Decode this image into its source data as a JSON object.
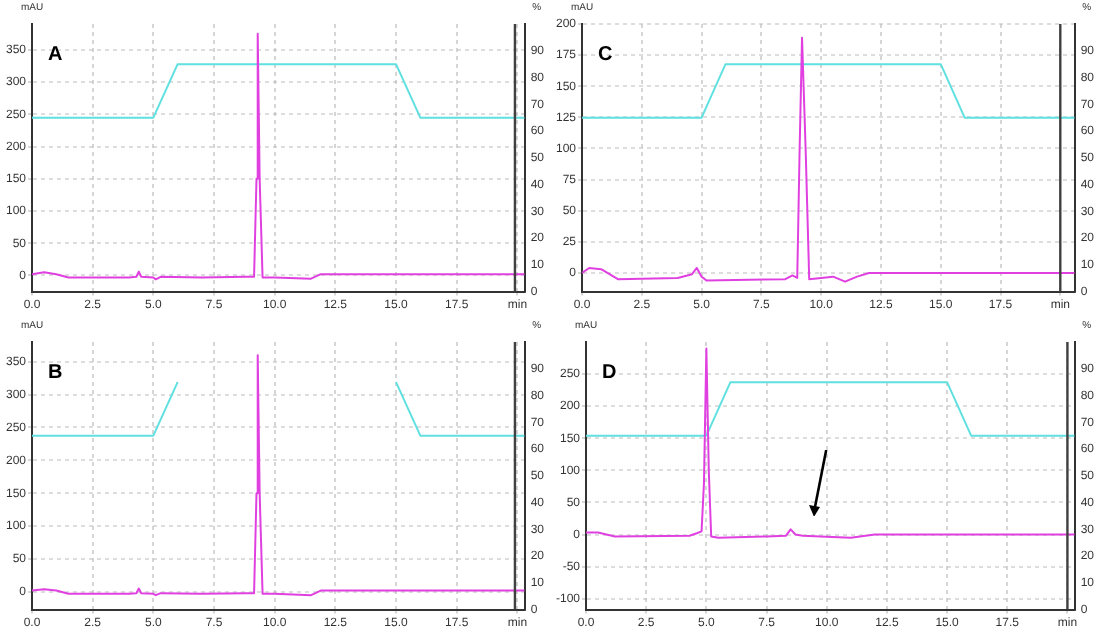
{
  "chart_data": [
    {
      "type": "line",
      "title": "A",
      "ylabel": "mAU",
      "y2label": "%",
      "grid": true,
      "marker": "none",
      "xlim": [
        0,
        20.3
      ],
      "xticks": [
        {
          "value": 0,
          "label": "0.0"
        },
        {
          "value": 2.5,
          "label": "2.5"
        },
        {
          "value": 5,
          "label": "5.0"
        },
        {
          "value": 7.5,
          "label": "7.5"
        },
        {
          "value": 10,
          "label": "10.0"
        },
        {
          "value": 12.5,
          "label": "12.5"
        },
        {
          "value": 15,
          "label": "15.0"
        },
        {
          "value": 17.5,
          "label": "17.5"
        },
        {
          "value": 20,
          "label": "min"
        }
      ],
      "ylim": [
        -25,
        390
      ],
      "yticks": [
        0,
        50,
        100,
        150,
        200,
        250,
        300,
        350
      ],
      "y2lim": [
        0,
        100
      ],
      "y2ticks": [
        0,
        10,
        20,
        30,
        40,
        50,
        60,
        70,
        80,
        90
      ],
      "ref_lines": [
        {
          "axis": "x",
          "value": 19.9,
          "color": "#404040"
        }
      ],
      "series": [
        {
          "color": "#e040e0",
          "x": [
            0,
            0.5,
            1,
            1.5,
            4,
            4.3,
            4.4,
            4.5,
            5,
            5.1,
            5.3,
            7,
            8.8,
            9.15,
            9.25,
            9.3,
            9.38,
            9.5,
            10,
            11.5,
            11.9,
            12.5,
            20.3
          ],
          "values": [
            2,
            5,
            2,
            -3,
            -3,
            -2,
            6,
            -2,
            -3,
            -6,
            -2,
            -3,
            -2,
            -2,
            150,
            375,
            150,
            -3,
            -3,
            -5,
            2,
            2,
            2
          ]
        },
        {
          "color": "#60e0e0",
          "axis": "y2",
          "x": [
            0,
            5,
            6,
            15,
            16,
            20.3
          ],
          "values": [
            65,
            65,
            85,
            85,
            65,
            65
          ]
        }
      ]
    },
    {
      "type": "line",
      "title": "C",
      "ylabel": "mAU",
      "y2label": "%",
      "grid": true,
      "marker": "none",
      "xlim": [
        0,
        20.6
      ],
      "xticks": [
        {
          "value": 0,
          "label": "0.0"
        },
        {
          "value": 2.5,
          "label": "2.5"
        },
        {
          "value": 5,
          "label": "5.0"
        },
        {
          "value": 7.5,
          "label": "7.5"
        },
        {
          "value": 10,
          "label": "10.0"
        },
        {
          "value": 12.5,
          "label": "12.5"
        },
        {
          "value": 15,
          "label": "15.0"
        },
        {
          "value": 17.5,
          "label": "17.5"
        },
        {
          "value": 20,
          "label": "min"
        }
      ],
      "ylim": [
        -15,
        200
      ],
      "yticks": [
        0,
        25,
        50,
        75,
        100,
        125,
        150,
        175,
        200
      ],
      "y2lim": [
        0,
        100
      ],
      "y2ticks": [
        0,
        10,
        20,
        30,
        40,
        50,
        60,
        70,
        80,
        90
      ],
      "ref_lines": [
        {
          "axis": "x",
          "value": 20,
          "color": "#404040"
        }
      ],
      "series": [
        {
          "color": "#e040e0",
          "x": [
            0,
            0.3,
            0.8,
            1.5,
            4,
            4.6,
            4.8,
            5,
            5.2,
            8.5,
            8.8,
            9,
            9.1,
            9.2,
            9.35,
            9.5,
            10.5,
            11,
            11.5,
            12,
            20.6
          ],
          "values": [
            0,
            4,
            3,
            -5,
            -4,
            -1,
            4,
            -3,
            -6,
            -5,
            -2,
            -4,
            100,
            189,
            100,
            -5,
            -3,
            -7,
            -3,
            0,
            0
          ]
        },
        {
          "color": "#60e0e0",
          "axis": "y2",
          "x": [
            0,
            5,
            6,
            15,
            16,
            20.6
          ],
          "values": [
            65,
            65,
            85,
            85,
            65,
            65
          ]
        }
      ]
    },
    {
      "type": "line",
      "title": "B",
      "ylabel": "mAU",
      "y2label": "%",
      "grid": true,
      "marker": "none",
      "xlim": [
        0,
        20.3
      ],
      "xticks": [
        {
          "value": 0,
          "label": "0.0"
        },
        {
          "value": 2.5,
          "label": "2.5"
        },
        {
          "value": 5,
          "label": "5.0"
        },
        {
          "value": 7.5,
          "label": "7.5"
        },
        {
          "value": 10,
          "label": "10.0"
        },
        {
          "value": 12.5,
          "label": "12.5"
        },
        {
          "value": 15,
          "label": "15.0"
        },
        {
          "value": 17.5,
          "label": "17.5"
        },
        {
          "value": 20,
          "label": "min"
        }
      ],
      "ylim": [
        -27,
        380
      ],
      "yticks": [
        0,
        50,
        100,
        150,
        200,
        250,
        300,
        350
      ],
      "y2lim": [
        0,
        100
      ],
      "y2ticks": [
        0,
        10,
        20,
        30,
        40,
        50,
        60,
        70,
        80,
        90
      ],
      "ref_lines": [
        {
          "axis": "x",
          "value": 19.9,
          "color": "#404040"
        }
      ],
      "series": [
        {
          "color": "#e040e0",
          "x": [
            0,
            0.5,
            1,
            1.5,
            4,
            4.3,
            4.4,
            4.5,
            5,
            5.1,
            5.3,
            7,
            8.8,
            9.15,
            9.25,
            9.3,
            9.38,
            9.5,
            10,
            11.5,
            11.9,
            12.5,
            20.3
          ],
          "values": [
            2,
            4,
            2,
            -3,
            -3,
            -2,
            5,
            -2,
            -3,
            -5,
            -2,
            -3,
            -2,
            -2,
            150,
            360,
            150,
            -3,
            -3,
            -5,
            2,
            2,
            2
          ]
        },
        {
          "color": "#60e0e0",
          "axis": "y2",
          "x": [
            0,
            5,
            6,
            10.5,
            15,
            16,
            20.3
          ],
          "values": [
            65,
            65,
            85,
            null,
            85,
            65,
            65
          ]
        }
      ]
    },
    {
      "type": "line",
      "title": "D",
      "ylabel": "mAU",
      "y2label": "%",
      "grid": true,
      "marker": "none",
      "xlim": [
        0,
        20.3
      ],
      "xticks": [
        {
          "value": 0,
          "label": "0.0"
        },
        {
          "value": 2.5,
          "label": "2.5"
        },
        {
          "value": 5,
          "label": "5.0"
        },
        {
          "value": 7.5,
          "label": "7.5"
        },
        {
          "value": 10,
          "label": "10.0"
        },
        {
          "value": 12.5,
          "label": "12.5"
        },
        {
          "value": 15,
          "label": "15.0"
        },
        {
          "value": 17.5,
          "label": "17.5"
        },
        {
          "value": 20,
          "label": "min"
        }
      ],
      "ylim": [
        -117,
        300
      ],
      "yticks": [
        -100,
        -50,
        0,
        50,
        100,
        150,
        200,
        250
      ],
      "y2lim": [
        0,
        100
      ],
      "y2ticks": [
        0,
        10,
        20,
        30,
        40,
        50,
        60,
        70,
        80,
        90
      ],
      "ref_lines": [
        {
          "axis": "x",
          "value": 20,
          "color": "#404040"
        }
      ],
      "series": [
        {
          "color": "#e040e0",
          "x": [
            0,
            0.5,
            1.2,
            4.3,
            4.6,
            4.8,
            4.9,
            5,
            5.1,
            5.2,
            5.5,
            7.5,
            8.3,
            8.5,
            8.7,
            9,
            11,
            12,
            20.3
          ],
          "values": [
            3,
            3,
            -3,
            -2,
            2,
            5,
            80,
            290,
            100,
            -3,
            -5,
            -3,
            -2,
            8,
            0,
            -2,
            -5,
            0,
            0
          ]
        },
        {
          "color": "#60e0e0",
          "axis": "y2",
          "x": [
            0,
            5,
            6,
            15,
            16,
            20.3
          ],
          "values": [
            65,
            65,
            85,
            85,
            65,
            65
          ]
        }
      ]
    }
  ]
}
